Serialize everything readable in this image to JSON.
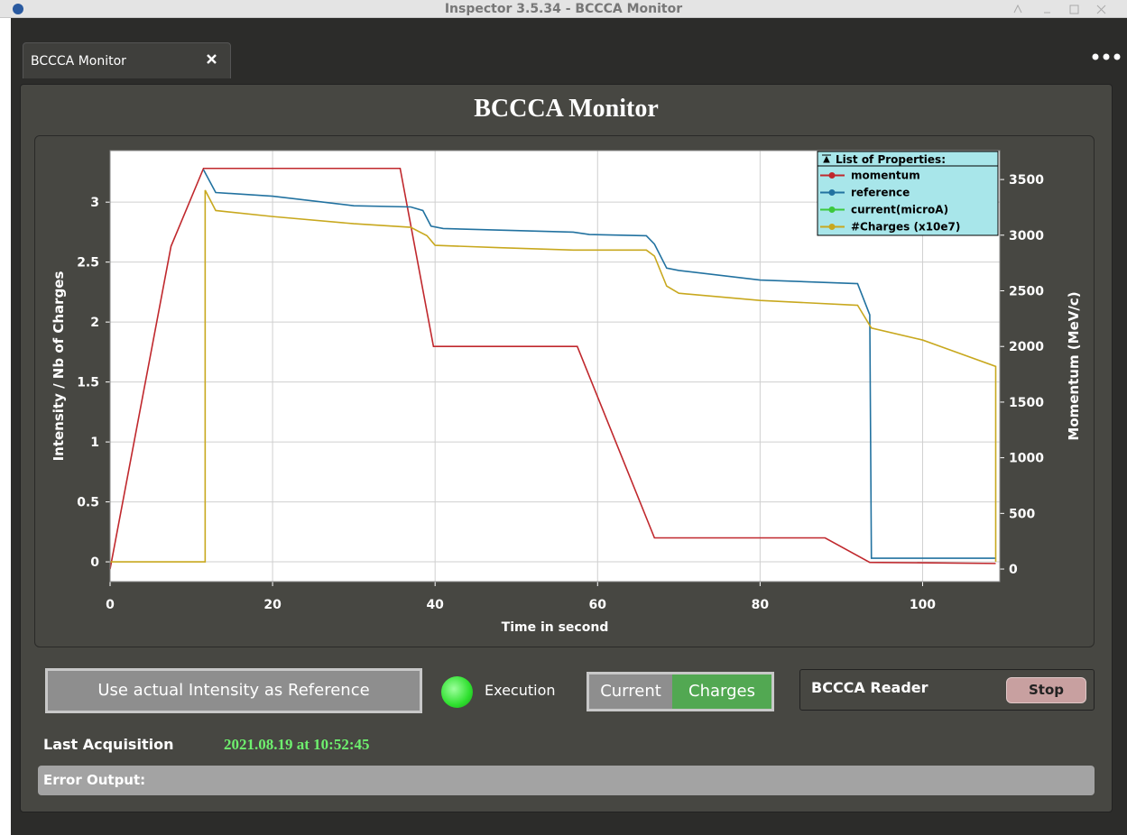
{
  "window": {
    "title": "Inspector 3.5.34 - BCCCA Monitor"
  },
  "tab": {
    "label": "BCCCA Monitor"
  },
  "panel": {
    "title": "BCCCA Monitor"
  },
  "chart_data": {
    "type": "line",
    "x_label": "Time in second",
    "y_label": "Intensity / Nb of Charges",
    "y2_label": "Momentum (MeV/c)",
    "xlim": [
      0,
      109.5
    ],
    "xticks": [
      0,
      20,
      40,
      60,
      80,
      100
    ],
    "ylim": [
      -0.165,
      3.43
    ],
    "yticks": [
      0,
      0.5,
      1,
      1.5,
      2,
      2.5,
      3
    ],
    "y2lim": [
      -113,
      3760
    ],
    "y2ticks": [
      0,
      500,
      1000,
      1500,
      2000,
      2500,
      3000,
      3500
    ],
    "grid": true,
    "legend": "upper right",
    "legend_title": "List of Properties:",
    "series": [
      {
        "name": "momentum",
        "color": "#c0282d",
        "axis": "y2",
        "x": [
          0,
          7.5,
          11.5,
          35.7,
          39.8,
          57.5,
          67,
          88,
          93.5,
          109
        ],
        "values": [
          0,
          2900,
          3600,
          3600,
          2000,
          2000,
          280,
          280,
          60,
          50
        ]
      },
      {
        "name": "reference",
        "color": "#2272a0",
        "x": [
          11.5,
          13,
          20,
          30,
          37,
          38.5,
          39.5,
          41,
          57,
          59,
          66,
          67,
          68.5,
          70,
          80,
          92,
          93.5,
          93.7,
          109
        ],
        "values": [
          3.27,
          3.08,
          3.05,
          2.97,
          2.96,
          2.93,
          2.8,
          2.78,
          2.75,
          2.73,
          2.72,
          2.65,
          2.45,
          2.43,
          2.35,
          2.32,
          2.06,
          0.03,
          0.03
        ]
      },
      {
        "name": "current(microA)",
        "color": "#3cc83c",
        "x": [],
        "values": []
      },
      {
        "name": "#Charges (x10e7)",
        "color": "#c8a81e",
        "x": [
          0,
          11.7,
          11.7,
          13,
          20,
          30,
          37,
          39,
          40,
          48,
          57,
          66,
          67,
          68.5,
          70,
          80,
          92,
          93.7,
          100,
          109,
          109
        ],
        "values": [
          0,
          0,
          3.1,
          2.93,
          2.88,
          2.82,
          2.79,
          2.72,
          2.64,
          2.62,
          2.6,
          2.6,
          2.55,
          2.3,
          2.24,
          2.18,
          2.14,
          1.95,
          1.85,
          1.63,
          0
        ]
      }
    ]
  },
  "controls": {
    "button": "Use actual Intensity as Reference",
    "indicator": "Execution",
    "toggle": [
      "Current",
      "Charges"
    ]
  },
  "reader": {
    "label": "BCCCA Reader",
    "button": "Stop"
  },
  "acquisition": {
    "label": "Last Acquisition",
    "value": "2021.08.19 at 10:52:45"
  },
  "error": {
    "label": "Error Output:"
  }
}
